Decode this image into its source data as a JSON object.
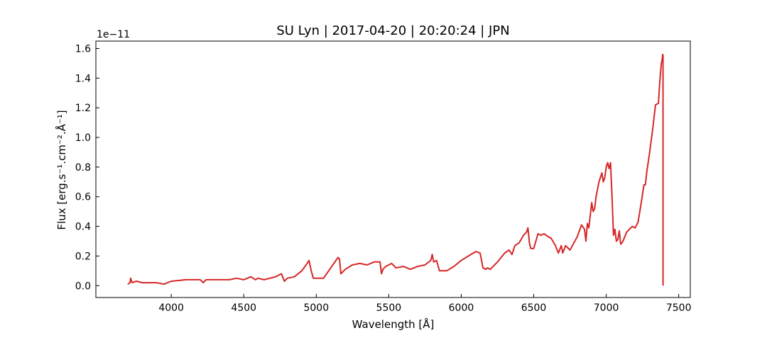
{
  "chart_data": {
    "type": "line",
    "title": "SU Lyn | 2017-04-20 | 20:20:24 | JPN",
    "xlabel": "Wavelength [Å]",
    "ylabel": "Flux [erg.s⁻¹.cm⁻².Å⁻¹]",
    "y_scale_label": "1e−11",
    "xlim": [
      3480,
      7580
    ],
    "ylim": [
      -0.08,
      1.65
    ],
    "x_ticks": [
      4000,
      4500,
      5000,
      5500,
      6000,
      6500,
      7000,
      7500
    ],
    "x_tick_labels": [
      "4000",
      "4500",
      "5000",
      "5500",
      "6000",
      "6500",
      "7000",
      "7500"
    ],
    "y_ticks": [
      0.0,
      0.2,
      0.4,
      0.6,
      0.8,
      1.0,
      1.2,
      1.4,
      1.6
    ],
    "y_tick_labels": [
      "0.0",
      "0.2",
      "0.4",
      "0.6",
      "0.8",
      "1.0",
      "1.2",
      "1.4",
      "1.6"
    ],
    "grid": false,
    "line_color": "#d62728",
    "series": [
      {
        "x": [
          3700,
          3715,
          3720,
          3730,
          3760,
          3800,
          3850,
          3900,
          3950,
          4000,
          4100,
          4200,
          4220,
          4240,
          4260,
          4300,
          4350,
          4400,
          4450,
          4500,
          4550,
          4580,
          4600,
          4640,
          4680,
          4720,
          4760,
          4780,
          4800,
          4850,
          4900,
          4930,
          4950,
          4965,
          4980,
          5000,
          5050,
          5100,
          5150,
          5160,
          5170,
          5180,
          5200,
          5250,
          5300,
          5350,
          5400,
          5440,
          5450,
          5460,
          5480,
          5500,
          5520,
          5550,
          5600,
          5650,
          5700,
          5750,
          5790,
          5800,
          5810,
          5830,
          5850,
          5880,
          5900,
          5950,
          6000,
          6050,
          6100,
          6130,
          6150,
          6170,
          6180,
          6200,
          6250,
          6300,
          6330,
          6350,
          6370,
          6400,
          6430,
          6450,
          6460,
          6470,
          6480,
          6500,
          6530,
          6550,
          6570,
          6600,
          6620,
          6650,
          6670,
          6690,
          6700,
          6720,
          6750,
          6800,
          6830,
          6850,
          6860,
          6870,
          6880,
          6900,
          6910,
          6920,
          6930,
          6950,
          6970,
          6980,
          6990,
          7000,
          7010,
          7020,
          7030,
          7040,
          7050,
          7060,
          7070,
          7080,
          7090,
          7100,
          7110,
          7120,
          7140,
          7160,
          7180,
          7200,
          7220,
          7240,
          7260,
          7270,
          7280,
          7300,
          7320,
          7340,
          7360,
          7370,
          7380,
          7385,
          7390,
          7392,
          7392
        ],
        "y": [
          0.01,
          0.02,
          0.05,
          0.02,
          0.03,
          0.02,
          0.02,
          0.02,
          0.01,
          0.03,
          0.04,
          0.04,
          0.02,
          0.04,
          0.04,
          0.04,
          0.04,
          0.04,
          0.05,
          0.04,
          0.06,
          0.04,
          0.05,
          0.04,
          0.05,
          0.06,
          0.08,
          0.03,
          0.05,
          0.06,
          0.1,
          0.14,
          0.17,
          0.1,
          0.05,
          0.05,
          0.05,
          0.12,
          0.19,
          0.18,
          0.08,
          0.09,
          0.11,
          0.14,
          0.15,
          0.14,
          0.16,
          0.16,
          0.08,
          0.11,
          0.13,
          0.14,
          0.15,
          0.12,
          0.13,
          0.11,
          0.13,
          0.14,
          0.17,
          0.21,
          0.16,
          0.17,
          0.1,
          0.1,
          0.1,
          0.13,
          0.17,
          0.2,
          0.23,
          0.22,
          0.12,
          0.11,
          0.12,
          0.11,
          0.16,
          0.22,
          0.24,
          0.21,
          0.27,
          0.29,
          0.34,
          0.36,
          0.39,
          0.29,
          0.25,
          0.25,
          0.35,
          0.34,
          0.35,
          0.33,
          0.32,
          0.27,
          0.22,
          0.27,
          0.22,
          0.27,
          0.24,
          0.33,
          0.41,
          0.38,
          0.3,
          0.42,
          0.39,
          0.56,
          0.5,
          0.52,
          0.6,
          0.7,
          0.76,
          0.7,
          0.73,
          0.8,
          0.83,
          0.79,
          0.83,
          0.6,
          0.34,
          0.38,
          0.3,
          0.31,
          0.37,
          0.28,
          0.29,
          0.31,
          0.36,
          0.38,
          0.4,
          0.39,
          0.43,
          0.55,
          0.68,
          0.68,
          0.77,
          0.9,
          1.05,
          1.22,
          1.23,
          1.38,
          1.5,
          1.52,
          1.56,
          1.55,
          0.0
        ]
      }
    ]
  }
}
